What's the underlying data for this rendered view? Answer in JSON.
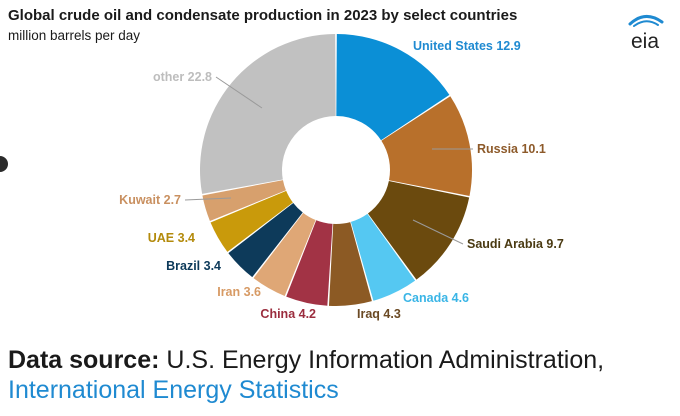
{
  "header": {
    "title": "Global crude oil and condensate production in 2023 by select countries",
    "subtitle": "million barrels per day",
    "logo_text": "eia"
  },
  "footer": {
    "source_label": "Data source:",
    "source_org": " U.S. Energy Information Administration,",
    "source_link": "International Energy Statistics"
  },
  "chart_data": {
    "type": "pie",
    "variant": "donut",
    "title": "Global crude oil and condensate production in 2023 by select countries",
    "subtitle": "million barrels per day",
    "categories": [
      "United States",
      "Russia",
      "Saudi Arabia",
      "Canada",
      "Iraq",
      "China",
      "Iran",
      "Brazil",
      "UAE",
      "Kuwait",
      "other"
    ],
    "values": [
      12.9,
      10.1,
      9.7,
      4.6,
      4.3,
      4.2,
      3.6,
      3.4,
      3.4,
      2.7,
      22.8
    ],
    "labels": [
      "United States 12.9",
      "Russia 10.1",
      "Saudi Arabia 9.7",
      "Canada 4.6",
      "Iraq 4.3",
      "China 4.2",
      "Iran 3.6",
      "Brazil 3.4",
      "UAE 3.4",
      "Kuwait 2.7",
      "other 22.8"
    ],
    "colors": [
      "#0b8fd6",
      "#b8702b",
      "#6b4a0e",
      "#55c8f2",
      "#8c5a24",
      "#a23345",
      "#dfa776",
      "#0d3a5a",
      "#c99a0b",
      "#d7a06d",
      "#c1c1c1"
    ],
    "label_colors": [
      "#1f8ad1",
      "#8d5a2a",
      "#4a3a12",
      "#3ab5e6",
      "#6b4a24",
      "#9b2d3e",
      "#d79a64",
      "#0d3a5a",
      "#b38a0b",
      "#c99060",
      "#bdbdbd"
    ]
  }
}
